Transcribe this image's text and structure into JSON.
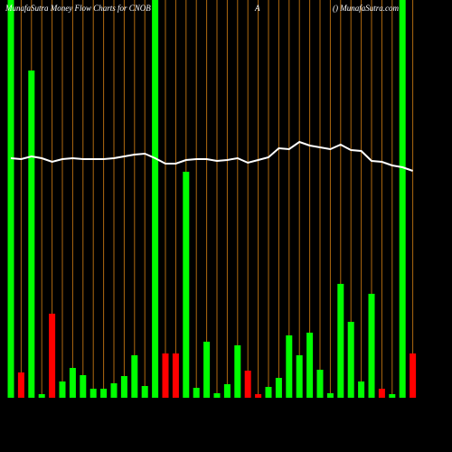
{
  "chart_data": {
    "type": "bar",
    "title": "MunafaSutra  Money Flow  Charts for CNOB",
    "subtitle": "A",
    "source": "() MunafaSutra.com",
    "categories": [
      null,
      null,
      null,
      null,
      null,
      null,
      null,
      null,
      null,
      null,
      null,
      null,
      null,
      null,
      null,
      null,
      null,
      null,
      null,
      null,
      null,
      null,
      null,
      null,
      null,
      null,
      null,
      null,
      null,
      null,
      null,
      null,
      null,
      null,
      null,
      null,
      null,
      null,
      null,
      null
    ],
    "values": [
      440,
      28,
      362,
      4,
      93,
      18,
      33,
      25,
      10,
      10,
      16,
      24,
      47,
      13,
      440,
      49,
      49,
      250,
      11,
      62,
      5,
      15,
      58,
      30,
      4,
      12,
      22,
      69,
      47,
      72,
      31,
      5,
      126,
      84,
      18,
      115,
      10,
      4,
      440,
      49
    ],
    "colors": [
      "#00ff00",
      "#ff0000",
      "#00ff00",
      "#00ff00",
      "#ff0000",
      "#00ff00",
      "#00ff00",
      "#00ff00",
      "#00ff00",
      "#00ff00",
      "#00ff00",
      "#00ff00",
      "#00ff00",
      "#00ff00",
      "#00ff00",
      "#ff0000",
      "#ff0000",
      "#00ff00",
      "#00ff00",
      "#00ff00",
      "#00ff00",
      "#00ff00",
      "#00ff00",
      "#ff0000",
      "#ff0000",
      "#00ff00",
      "#00ff00",
      "#00ff00",
      "#00ff00",
      "#00ff00",
      "#00ff00",
      "#00ff00",
      "#00ff00",
      "#00ff00",
      "#00ff00",
      "#00ff00",
      "#ff0000",
      "#00ff00",
      "#00ff00",
      "#ff0000"
    ],
    "price": [
      265,
      264,
      267,
      265,
      261,
      264,
      265,
      264,
      264,
      264,
      265,
      267,
      269,
      270,
      265,
      259,
      259,
      263,
      264,
      264,
      262,
      263,
      265,
      260,
      263,
      266,
      276,
      275,
      283,
      279,
      277,
      275,
      280,
      274,
      273,
      262,
      261,
      257,
      255,
      251
    ],
    "price_color": "#ffffff"
  }
}
